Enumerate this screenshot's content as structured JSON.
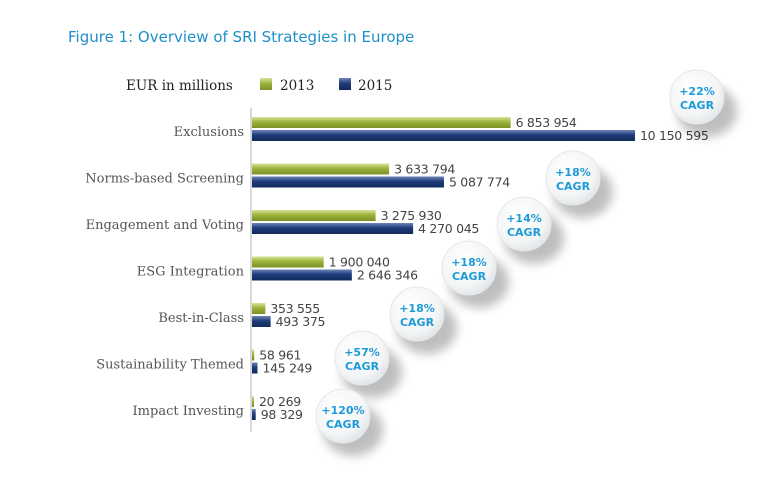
{
  "chart_data": {
    "type": "bar",
    "orientation": "horizontal",
    "title": "Figure 1: Overview of SRI Strategies in Europe",
    "unit_label": "EUR in millions",
    "categories": [
      "Exclusions",
      "Norms-based Screening",
      "Engagement and Voting",
      "ESG Integration",
      "Best-in-Class",
      "Sustainability Themed",
      "Impact Investing"
    ],
    "series": [
      {
        "name": "2013",
        "color": "#9cb33a",
        "values": [
          6853954,
          3633794,
          3275930,
          1900040,
          353555,
          58961,
          20269
        ],
        "labels": [
          "6 853 954",
          "3 633 794",
          "3 275 930",
          "1 900 040",
          "353 555",
          "58 961",
          "20 269"
        ]
      },
      {
        "name": "2015",
        "color": "#1f3c7a",
        "values": [
          10150595,
          5087774,
          4270045,
          2646346,
          493375,
          145249,
          98329
        ],
        "labels": [
          "10 150 595",
          "5 087 774",
          "4 270 045",
          "2 646 346",
          "493 375",
          "145 249",
          "98 329"
        ]
      }
    ],
    "annotations": [
      {
        "growth": "+22%",
        "label": "CAGR"
      },
      {
        "growth": "+18%",
        "label": "CAGR"
      },
      {
        "growth": "+14%",
        "label": "CAGR"
      },
      {
        "growth": "+18%",
        "label": "CAGR"
      },
      {
        "growth": "+18%",
        "label": "CAGR"
      },
      {
        "growth": "+57%",
        "label": "CAGR"
      },
      {
        "growth": "+120%",
        "label": "CAGR"
      }
    ],
    "annotation_color": "#1e9bd7",
    "xlim": [
      0,
      10150595
    ],
    "grid": false,
    "legend_placement": "top"
  }
}
